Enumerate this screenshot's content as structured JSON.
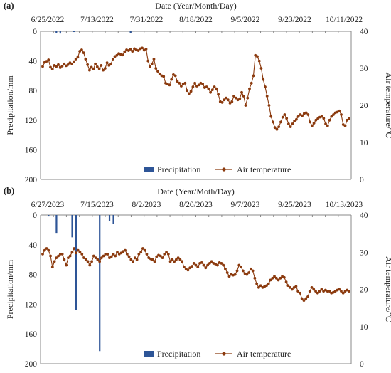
{
  "chart_data": [
    {
      "type": "bar+line",
      "panel_label": "(a)",
      "x_title": "Date (Year/Month/Day)",
      "y_left_title": "Precipitation/mm",
      "y_right_title": "Air temperature/℃",
      "x_ticks": [
        "6/25/2022",
        "7/13/2022",
        "7/31/2022",
        "8/18/2022",
        "9/5/2022",
        "9/23/2022",
        "10/11/2022"
      ],
      "start_date": "2022-06-25",
      "y_left_ticks": [
        "0",
        "40",
        "80",
        "120",
        "160",
        "200"
      ],
      "y_left_range": [
        0,
        200
      ],
      "y_left_inverted": true,
      "y_right_ticks": [
        "0",
        "10",
        "20",
        "30",
        "40"
      ],
      "y_right_range": [
        0,
        40
      ],
      "legend": {
        "bars": "Precipitation",
        "line": "Air temperature",
        "position": "bottom-center"
      },
      "series": [
        {
          "name": "Precipitation",
          "type": "bar",
          "color": "#2E5597",
          "values": [
            0,
            0,
            0,
            0,
            0,
            0,
            0,
            2,
            0,
            3,
            0,
            0,
            0,
            0,
            0,
            0,
            1,
            0,
            0,
            0,
            0,
            0,
            0,
            0,
            0,
            0,
            0,
            0,
            0,
            0,
            0,
            0,
            0,
            0,
            0,
            0,
            0,
            0,
            0,
            0,
            0,
            0,
            0,
            0,
            0,
            2,
            0,
            0,
            0,
            0,
            0,
            0,
            0,
            0,
            0,
            0,
            0,
            0,
            0,
            0,
            0,
            0,
            0,
            0,
            0,
            0,
            0,
            0,
            0,
            0,
            0,
            0,
            0,
            0,
            0,
            0,
            0,
            0,
            0,
            0,
            0,
            0,
            0,
            0,
            0,
            0,
            0,
            0,
            0,
            0,
            0,
            0,
            0,
            0,
            0,
            0,
            0,
            0,
            0,
            0,
            0,
            0,
            0,
            0,
            0,
            0,
            0,
            0,
            0,
            0,
            0,
            0,
            0,
            0,
            0,
            0,
            0,
            0,
            0,
            0,
            0,
            0,
            0,
            0,
            0,
            0,
            0,
            0,
            0,
            0,
            0,
            0,
            0,
            0,
            0,
            0,
            0,
            0,
            0,
            0,
            0,
            0,
            0,
            0,
            0,
            0,
            0,
            0,
            0,
            0,
            0,
            0,
            0,
            0,
            0,
            0
          ]
        },
        {
          "name": "Air temperature",
          "type": "line",
          "color": "#8B3A0E",
          "values": [
            30.5,
            31.6,
            31.9,
            32.3,
            30.3,
            29.8,
            30.8,
            30.5,
            31.0,
            30.2,
            30.6,
            31.2,
            30.7,
            31.0,
            31.5,
            31.2,
            31.8,
            32.5,
            33.0,
            34.6,
            35.0,
            34.2,
            32.5,
            31.0,
            29.5,
            30.3,
            29.8,
            31.2,
            30.4,
            29.9,
            30.8,
            29.5,
            30.0,
            31.5,
            30.8,
            31.2,
            32.5,
            33.2,
            33.5,
            34.0,
            33.8,
            33.6,
            34.5,
            35.0,
            34.8,
            35.2,
            34.6,
            35.3,
            35.0,
            34.8,
            35.3,
            35.5,
            34.9,
            35.2,
            32.0,
            30.5,
            31.2,
            32.5,
            30.0,
            29.2,
            28.5,
            28.0,
            27.8,
            26.0,
            25.8,
            25.5,
            27.0,
            28.3,
            28.0,
            26.5,
            26.0,
            25.2,
            25.8,
            26.0,
            24.0,
            23.2,
            23.8,
            25.0,
            26.0,
            25.2,
            25.5,
            26.0,
            25.8,
            24.8,
            25.0,
            24.5,
            23.5,
            24.2,
            25.0,
            24.5,
            23.0,
            21.0,
            20.8,
            21.5,
            22.0,
            21.5,
            20.6,
            21.0,
            22.5,
            22.0,
            21.5,
            21.8,
            23.5,
            22.5,
            20.0,
            22.0,
            24.5,
            26.0,
            28.0,
            33.5,
            33.2,
            32.0,
            30.0,
            27.0,
            25.0,
            22.5,
            20.0,
            17.0,
            15.5,
            14.0,
            13.5,
            14.2,
            15.5,
            16.8,
            17.5,
            16.5,
            15.0,
            14.2,
            15.0,
            15.8,
            16.2,
            17.0,
            17.5,
            17.2,
            17.8,
            18.0,
            17.5,
            15.5,
            14.5,
            15.2,
            16.0,
            16.4,
            16.8,
            17.0,
            16.5,
            15.0,
            14.5,
            16.0,
            17.0,
            17.5,
            18.0,
            18.2,
            18.5,
            17.5,
            14.8,
            14.5,
            16.0,
            16.5
          ]
        }
      ]
    },
    {
      "type": "bar+line",
      "panel_label": "(b)",
      "x_title": "Date (Year/Moth/Day)",
      "y_left_title": "Precipitation/mm",
      "y_right_title": "Air temperature/℃",
      "x_ticks": [
        "6/27/2023",
        "7/15/2023",
        "8/2/2023",
        "8/20/2023",
        "9/7/2023",
        "9/25/2023",
        "10/13/2023"
      ],
      "start_date": "2023-06-27",
      "y_left_ticks": [
        "0",
        "40",
        "80",
        "120",
        "160",
        "200"
      ],
      "y_left_range": [
        0,
        200
      ],
      "y_left_inverted": true,
      "y_right_ticks": [
        "0",
        "10",
        "20",
        "30",
        "40"
      ],
      "y_right_range": [
        0,
        40
      ],
      "legend": {
        "bars": "Precipitation",
        "line": "Air temperature",
        "position": "bottom-center"
      },
      "series": [
        {
          "name": "Precipitation",
          "type": "bar",
          "color": "#2E5597",
          "values": [
            0,
            0,
            0,
            2,
            0,
            0,
            0,
            25,
            0,
            0,
            0,
            0,
            0,
            0,
            0,
            30,
            0,
            128,
            0,
            0,
            0,
            0,
            0,
            0,
            0,
            0,
            0,
            0,
            0,
            183,
            0,
            0,
            0,
            0,
            8,
            0,
            12,
            0,
            0,
            0,
            0,
            0,
            0,
            0,
            0,
            0,
            0,
            0,
            0,
            0,
            0,
            0,
            0,
            0,
            0,
            0,
            0,
            0,
            0,
            0,
            0,
            0,
            0,
            0,
            0,
            0,
            0,
            0,
            0,
            0,
            0,
            0,
            0,
            0,
            0,
            0,
            0,
            0,
            0,
            0,
            0,
            0,
            0,
            0,
            0,
            0,
            0,
            0,
            0,
            0,
            0,
            0,
            0,
            0,
            0,
            0,
            0,
            0,
            0,
            0,
            0,
            0,
            0,
            0,
            0,
            0,
            0,
            0,
            0,
            0,
            0,
            0,
            0,
            0,
            0,
            0,
            0,
            0,
            0,
            0,
            0,
            0,
            0,
            0,
            0,
            0,
            0,
            0,
            0,
            0,
            0,
            0,
            0,
            0,
            0,
            0,
            0,
            0,
            0,
            0,
            0,
            0,
            0,
            0,
            0,
            0,
            0,
            0,
            0,
            0,
            0,
            0,
            0,
            0,
            0,
            0,
            0,
            0,
            0,
            0,
            0,
            0,
            0,
            0,
            0,
            0,
            0,
            0,
            0
          ]
        },
        {
          "name": "Air temperature",
          "type": "line",
          "color": "#8B3A0E",
          "values": [
            29.5,
            30.5,
            31.0,
            30.5,
            29.0,
            26.0,
            27.5,
            28.5,
            29.0,
            29.5,
            29.5,
            28.0,
            26.5,
            28.5,
            29.0,
            30.0,
            31.0,
            29.8,
            30.5,
            30.0,
            29.5,
            28.5,
            28.0,
            27.5,
            26.5,
            27.5,
            29.0,
            28.5,
            28.0,
            27.5,
            28.5,
            29.0,
            29.5,
            29.5,
            28.5,
            28.8,
            29.5,
            29.0,
            30.0,
            29.5,
            29.8,
            30.2,
            30.5,
            29.5,
            28.8,
            28.0,
            27.5,
            28.5,
            28.0,
            29.5,
            30.0,
            31.0,
            30.5,
            29.5,
            28.5,
            28.2,
            28.0,
            27.5,
            28.8,
            29.2,
            29.0,
            28.5,
            29.5,
            30.0,
            29.5,
            27.5,
            28.0,
            27.5,
            28.0,
            28.5,
            28.0,
            27.5,
            26.0,
            25.5,
            25.2,
            25.8,
            26.2,
            27.0,
            26.5,
            26.0,
            27.0,
            27.2,
            26.5,
            25.8,
            26.5,
            27.0,
            27.5,
            27.0,
            26.8,
            26.5,
            27.2,
            27.0,
            26.5,
            25.5,
            24.5,
            23.5,
            24.0,
            23.8,
            24.0,
            25.0,
            26.5,
            26.0,
            25.0,
            24.2,
            24.0,
            24.5,
            25.5,
            25.0,
            23.0,
            21.5,
            20.5,
            21.0,
            20.5,
            20.8,
            21.0,
            21.5,
            22.5,
            23.0,
            23.5,
            23.0,
            22.5,
            23.0,
            23.5,
            23.2,
            22.0,
            21.0,
            20.5,
            20.0,
            20.5,
            20.8,
            19.5,
            19.0,
            17.5,
            17.0,
            17.5,
            18.0,
            19.5,
            20.5,
            20.0,
            19.5,
            19.0,
            19.5,
            20.0,
            19.5,
            19.8,
            19.5,
            19.5,
            19.0,
            19.2,
            19.5,
            19.8,
            20.0,
            19.5,
            19.0,
            19.5,
            19.8,
            19.5
          ]
        }
      ]
    }
  ]
}
